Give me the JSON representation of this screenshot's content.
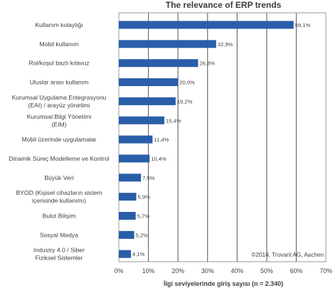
{
  "chart_data": {
    "type": "bar",
    "orientation": "horizontal",
    "title": "The relevance of ERP trends",
    "xlabel": "İlgi seviyelerinde giriş sayısı (n = 2.340)",
    "ylabel": "",
    "xlim": [
      0,
      70
    ],
    "x_ticks": [
      "0%",
      "10%",
      "20%",
      "30%",
      "40%",
      "50%",
      "60%",
      "70%"
    ],
    "grid": "vertical",
    "bar_color": "#2a5ea8",
    "categories": [
      [
        "Kullanım kolaylığı"
      ],
      [
        "Mobil kullanım"
      ],
      [
        "Rol/koşul bazlı kılavuz"
      ],
      [
        "Uluslar arası kullanım"
      ],
      [
        "Kurumsal Uygulama Entegrasyonu",
        "(EAI) / arayüz yönetimi"
      ],
      [
        "Kurumsal Bilgi Yönetimi",
        "(EIM)"
      ],
      [
        "Mobil üzerinde uygulamalar"
      ],
      [
        "Dinamik Süreç Modelleme ve Kontrol"
      ],
      [
        "Büyük Veri"
      ],
      [
        "BYOD (Kişisel cihazların sistem",
        "içerisinde kullanımı)"
      ],
      [
        "Bulut Bilişim"
      ],
      [
        "Sosyal Medya"
      ],
      [
        "Industry 4.0 / Siber",
        "Fiziksel Sistemler"
      ]
    ],
    "values": [
      59.1,
      32.9,
      26.8,
      20.0,
      19.2,
      15.4,
      11.4,
      10.4,
      7.5,
      5.9,
      5.7,
      5.2,
      4.1
    ],
    "value_labels": [
      "59,1%",
      "32,9%",
      "26,8%",
      "20,0%",
      "19,2%",
      "15,4%",
      "11,4%",
      "10,4%",
      "7,5%",
      "5,9%",
      "5,7%",
      "5,2%",
      "4,1%"
    ],
    "annotation": "©2014, Trovarit AG, Aachen"
  }
}
